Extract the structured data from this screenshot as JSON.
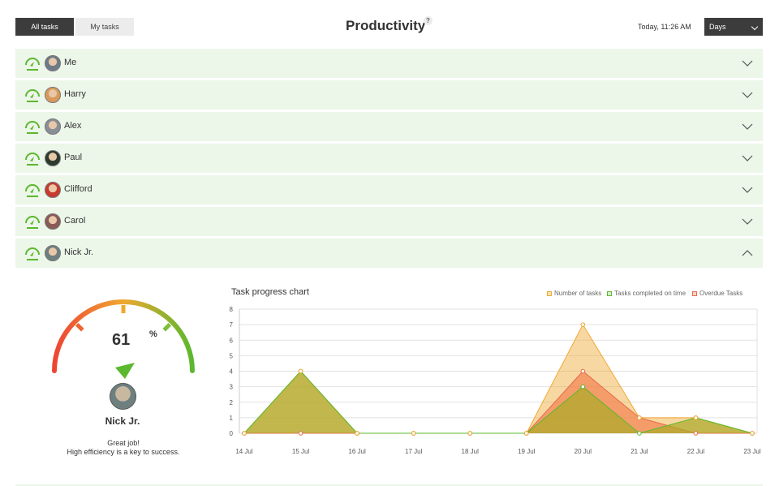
{
  "header": {
    "tab_all": "All tasks",
    "tab_my": "My tasks",
    "title": "Productivity",
    "help": "?",
    "date": "Today, 11:26 AM",
    "period": "Days"
  },
  "users": [
    {
      "name": "Me",
      "avatar_color": "#6f7a88",
      "expanded": false
    },
    {
      "name": "Harry",
      "avatar_color": "#d89a5a",
      "expanded": false
    },
    {
      "name": "Alex",
      "avatar_color": "#8a8e96",
      "expanded": false
    },
    {
      "name": "Paul",
      "avatar_color": "#2d3b2e",
      "expanded": false
    },
    {
      "name": "Clifford",
      "avatar_color": "#c83a2e",
      "expanded": false
    },
    {
      "name": "Carol",
      "avatar_color": "#8a5a55",
      "expanded": false
    },
    {
      "name": "Nick Jr.",
      "avatar_color": "#6e7f80",
      "expanded": true
    }
  ],
  "detail": {
    "percent": "61",
    "percent_sign": "%",
    "percent_value": 61,
    "name": "Nick Jr.",
    "message_line1": "Great job!",
    "message_line2": "High efficiency is a key to success.",
    "avatar_color": "#6e7f80"
  },
  "colors": {
    "row_bg": "#ecf6e9",
    "accent_green": "#5cb82e",
    "dark": "#3c3c3c",
    "number_of_tasks": "#f0a830",
    "completed": "#5cb82e",
    "overdue": "#e86a4a"
  },
  "chart_data": {
    "type": "area",
    "title": "Task progress chart",
    "categories": [
      "14 Jul",
      "15 Jul",
      "16 Jul",
      "17 Jul",
      "18 Jul",
      "19 Jul",
      "20 Jul",
      "21 Jul",
      "22 Jul",
      "23 Jul"
    ],
    "ylim": [
      0,
      8
    ],
    "yticks": [
      "0",
      "1",
      "2",
      "3",
      "4",
      "5",
      "6",
      "7",
      "8"
    ],
    "grid": true,
    "legend_position": "top-right",
    "series": [
      {
        "name": "Number of tasks",
        "color": "#f0a830",
        "values": [
          0,
          4,
          0,
          0,
          0,
          0,
          7,
          1,
          1,
          0
        ]
      },
      {
        "name": "Overdue Tasks",
        "color": "#e86a4a",
        "values": [
          0,
          0,
          0,
          0,
          0,
          0,
          4,
          1,
          0,
          0
        ]
      },
      {
        "name": "Tasks completed on time",
        "color": "#5cb82e",
        "values": [
          0,
          4,
          0,
          0,
          0,
          0,
          3,
          0,
          1,
          0
        ]
      }
    ],
    "legend": [
      "Number of tasks",
      "Tasks completed on time",
      "Overdue Tasks"
    ]
  }
}
